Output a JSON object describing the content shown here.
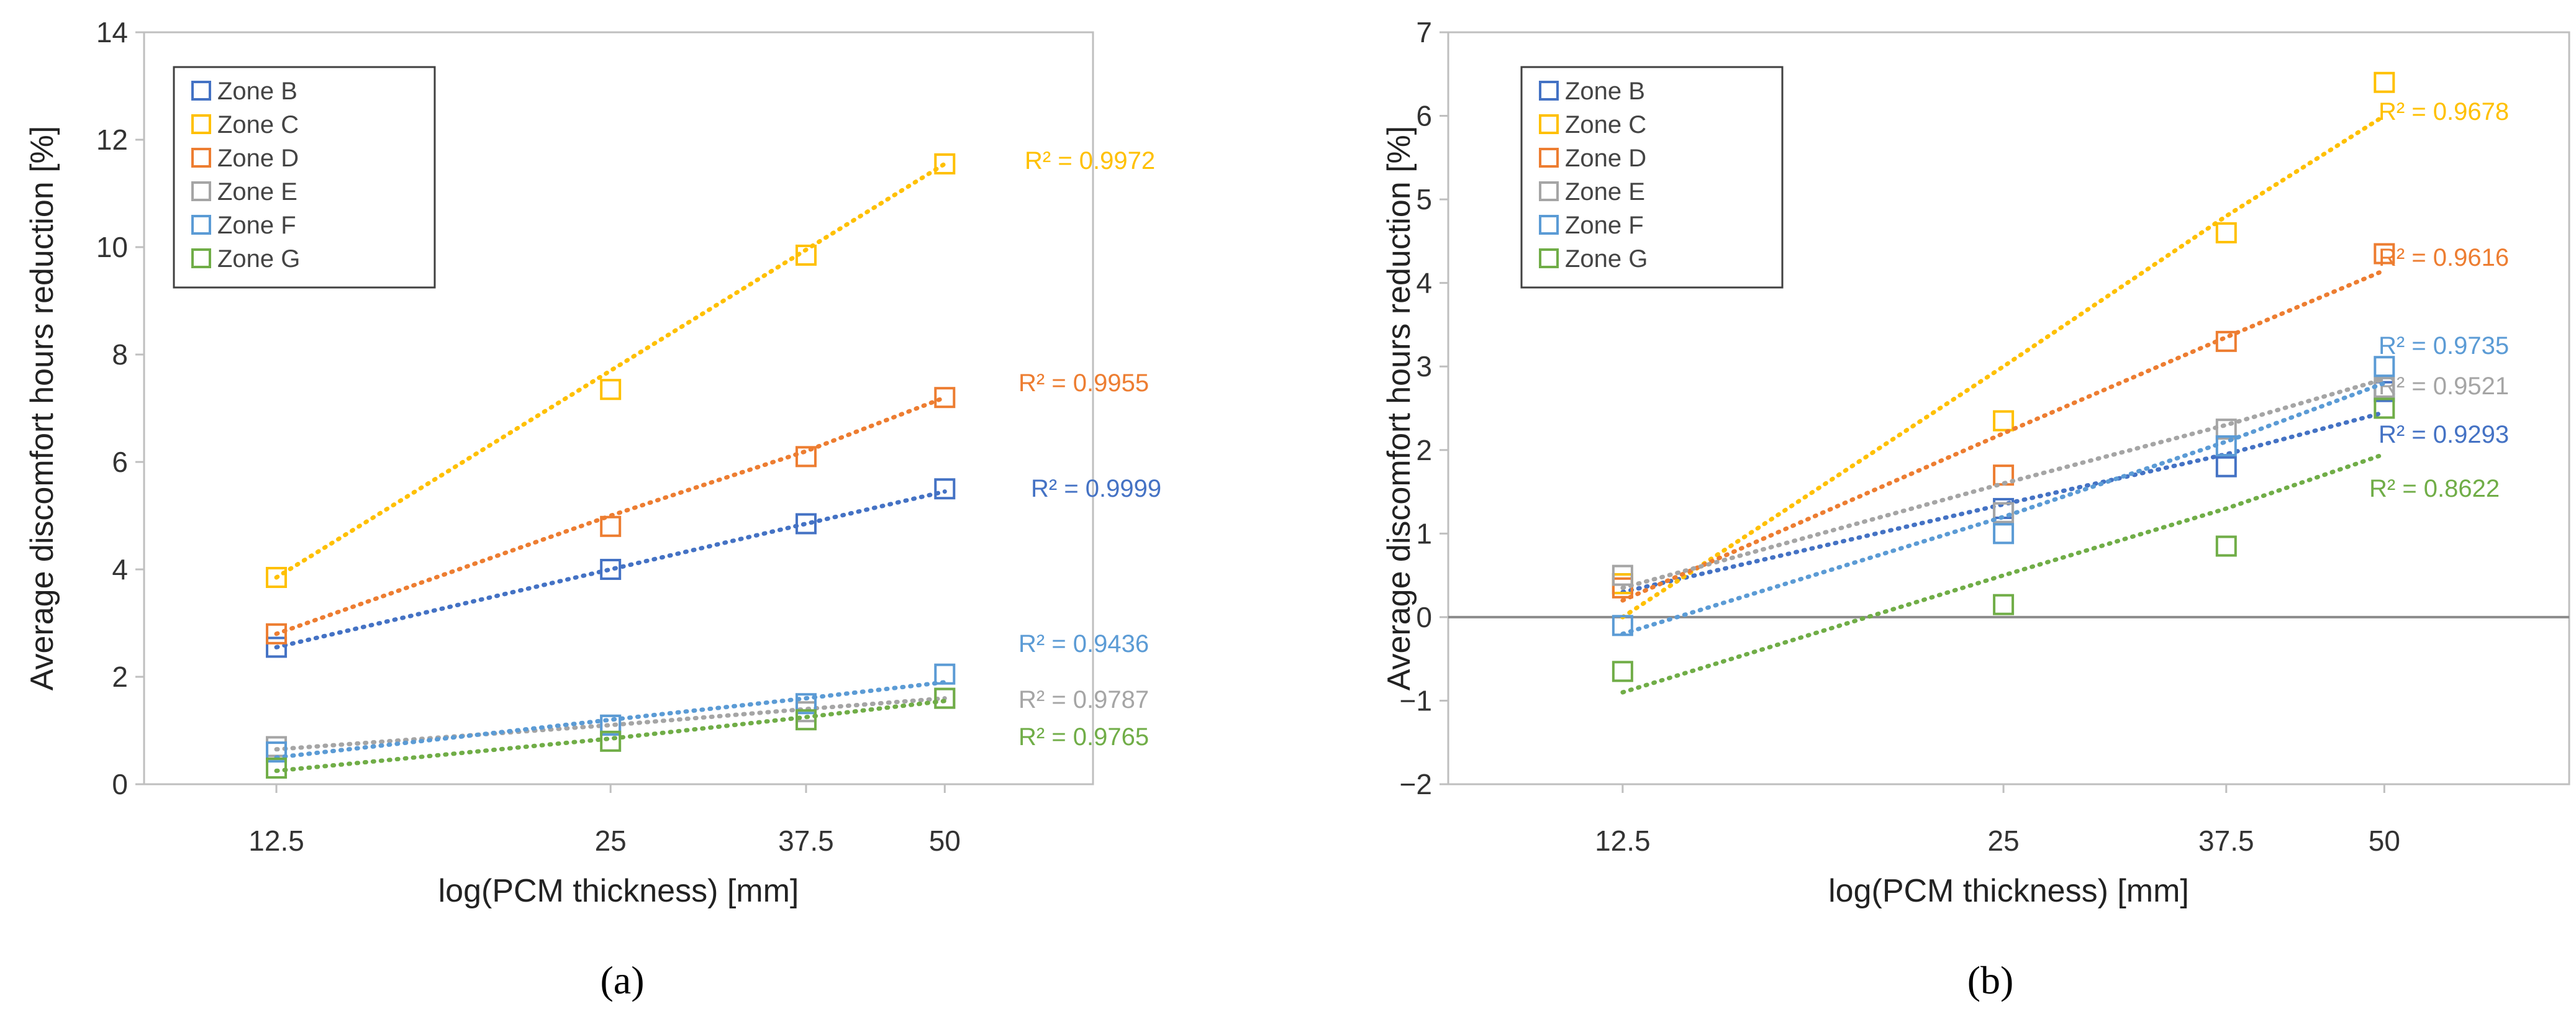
{
  "figure": {
    "panel_labels": [
      "(a)",
      "(b)"
    ]
  },
  "chart_data": [
    {
      "type": "scatter",
      "panel": "(a)",
      "title": "",
      "xlabel": "log(PCM thickness) [mm]",
      "ylabel": "Average discomfort hours reduction [%]",
      "x_scale": "log",
      "x_ticks": [
        12.5,
        25,
        37.5,
        50
      ],
      "x_tick_labels": [
        "12.5",
        "25",
        "37.5",
        "50"
      ],
      "x_range": [
        9.5,
        68
      ],
      "ylim": [
        0,
        14
      ],
      "y_ticks": [
        0,
        2,
        4,
        6,
        8,
        10,
        12,
        14
      ],
      "grid": false,
      "legend_position": "top-left",
      "trendline": "logarithmic (dotted)",
      "series": [
        {
          "name": "Zone B",
          "color": "#4472C4",
          "x": [
            12.5,
            25,
            37.5,
            50
          ],
          "values": [
            2.55,
            4.0,
            4.85,
            5.5
          ],
          "trend": [
            2.55,
            4.0,
            4.85,
            5.45
          ],
          "r2": "R² = 0.9999"
        },
        {
          "name": "Zone C",
          "color": "#FFC000",
          "x": [
            12.5,
            25,
            37.5,
            50
          ],
          "values": [
            3.85,
            7.35,
            9.85,
            11.55
          ],
          "trend": [
            3.85,
            7.7,
            9.95,
            11.55
          ],
          "r2": "R² = 0.9972"
        },
        {
          "name": "Zone D",
          "color": "#ED7D31",
          "x": [
            12.5,
            25,
            37.5,
            50
          ],
          "values": [
            2.8,
            4.8,
            6.1,
            7.2
          ],
          "trend": [
            2.8,
            5.0,
            6.2,
            7.2
          ],
          "r2": "R² = 0.9955"
        },
        {
          "name": "Zone E",
          "color": "#A5A5A5",
          "x": [
            12.5,
            25,
            37.5,
            50
          ],
          "values": [
            0.7,
            1.1,
            1.35,
            1.6
          ],
          "trend": [
            0.65,
            1.1,
            1.4,
            1.6
          ],
          "r2": "R² = 0.9787"
        },
        {
          "name": "Zone F",
          "color": "#5B9BD5",
          "x": [
            12.5,
            25,
            37.5,
            50
          ],
          "values": [
            0.6,
            1.1,
            1.5,
            2.05
          ],
          "trend": [
            0.5,
            1.2,
            1.6,
            1.9
          ],
          "r2": "R² = 0.9436"
        },
        {
          "name": "Zone G",
          "color": "#70AD47",
          "x": [
            12.5,
            25,
            37.5,
            50
          ],
          "values": [
            0.3,
            0.8,
            1.2,
            1.6
          ],
          "trend": [
            0.25,
            0.85,
            1.25,
            1.55
          ],
          "r2": "R² = 0.9765"
        }
      ]
    },
    {
      "type": "scatter",
      "panel": "(b)",
      "title": "",
      "xlabel": "log(PCM thickness) [mm]",
      "ylabel": "Average discomfort hours reduction [%]",
      "x_scale": "log",
      "x_ticks": [
        12.5,
        25,
        37.5,
        50
      ],
      "x_tick_labels": [
        "12.5",
        "25",
        "37.5",
        "50"
      ],
      "x_range": [
        9.1,
        70
      ],
      "ylim": [
        -2,
        7
      ],
      "y_ticks": [
        -2,
        -1,
        0,
        1,
        2,
        3,
        4,
        5,
        6,
        7
      ],
      "zero_line": true,
      "grid": false,
      "legend_position": "top-left",
      "trendline": "logarithmic (dotted)",
      "series": [
        {
          "name": "Zone B",
          "color": "#4472C4",
          "x": [
            12.5,
            25,
            37.5,
            50
          ],
          "values": [
            0.4,
            1.3,
            1.8,
            2.7
          ],
          "trend": [
            0.3,
            1.35,
            1.95,
            2.45
          ],
          "r2": "R² = 0.9293"
        },
        {
          "name": "Zone C",
          "color": "#FFC000",
          "x": [
            12.5,
            25,
            37.5,
            50
          ],
          "values": [
            0.4,
            2.35,
            4.6,
            6.4
          ],
          "trend": [
            0.0,
            3.0,
            4.8,
            6.0
          ],
          "r2": "R² = 0.9678"
        },
        {
          "name": "Zone D",
          "color": "#ED7D31",
          "x": [
            12.5,
            25,
            37.5,
            50
          ],
          "values": [
            0.35,
            1.7,
            3.3,
            4.35
          ],
          "trend": [
            0.2,
            2.2,
            3.35,
            4.15
          ],
          "r2": "R² = 0.9616"
        },
        {
          "name": "Zone E",
          "color": "#A5A5A5",
          "x": [
            12.5,
            25,
            37.5,
            50
          ],
          "values": [
            0.5,
            1.25,
            2.25,
            2.75
          ],
          "trend": [
            0.35,
            1.6,
            2.3,
            2.85
          ],
          "r2": "R² = 0.9521"
        },
        {
          "name": "Zone F",
          "color": "#5B9BD5",
          "x": [
            12.5,
            25,
            37.5,
            50
          ],
          "values": [
            -0.1,
            1.0,
            2.05,
            3.0
          ],
          "trend": [
            -0.2,
            1.2,
            2.1,
            2.8
          ],
          "r2": "R² = 0.9735"
        },
        {
          "name": "Zone G",
          "color": "#70AD47",
          "x": [
            12.5,
            25,
            37.5,
            50
          ],
          "values": [
            -0.65,
            0.15,
            0.85,
            2.5
          ],
          "trend": [
            -0.9,
            0.5,
            1.3,
            1.95
          ],
          "r2": "R² = 0.8622"
        }
      ]
    }
  ]
}
